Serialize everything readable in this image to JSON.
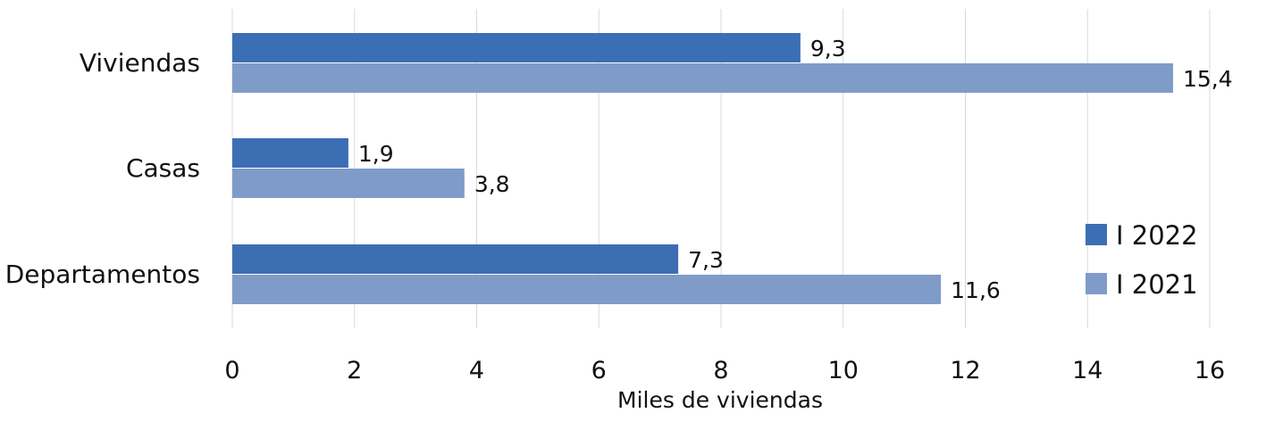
{
  "chart_data": {
    "type": "bar",
    "orientation": "horizontal",
    "title": "",
    "xlabel": "Miles de viviendas",
    "ylabel": "",
    "xlim": [
      0,
      16
    ],
    "xticks": [
      "0",
      "2",
      "4",
      "6",
      "8",
      "10",
      "12",
      "14",
      "16"
    ],
    "grid": true,
    "legend_position": "right",
    "categories": [
      "Viviendas",
      "Casas",
      "Departamentos"
    ],
    "series": [
      {
        "name": "I 2022",
        "color": "#3c6eb4",
        "values": [
          9.3,
          1.9,
          7.3
        ],
        "labels": [
          "9,3",
          "1,9",
          "7,3"
        ]
      },
      {
        "name": "I 2021",
        "color": "#7f9bc8",
        "values": [
          15.4,
          3.8,
          11.6
        ],
        "labels": [
          "15,4",
          "3,8",
          "11,6"
        ]
      }
    ]
  }
}
